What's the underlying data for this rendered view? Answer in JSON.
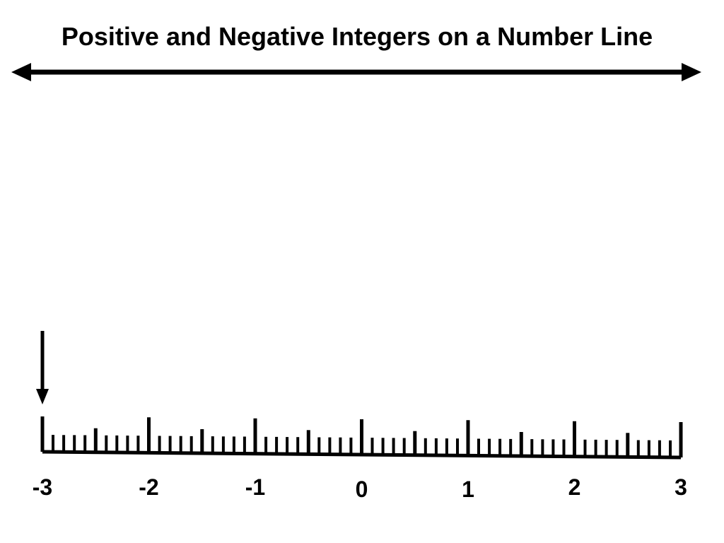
{
  "title": "Positive and Negative Integers on a Number Line",
  "number_line": {
    "min": -3,
    "max": 3,
    "minor_divisions_per_unit": 10,
    "labels": [
      "-3",
      "-2",
      "-1",
      "0",
      "1",
      "2",
      "3"
    ],
    "pointer_value": -3
  },
  "colors": {
    "ink": "#000000",
    "background": "#ffffff"
  },
  "icons": {
    "arrow": "double-headed-arrow",
    "pointer": "down-arrow-icon"
  }
}
